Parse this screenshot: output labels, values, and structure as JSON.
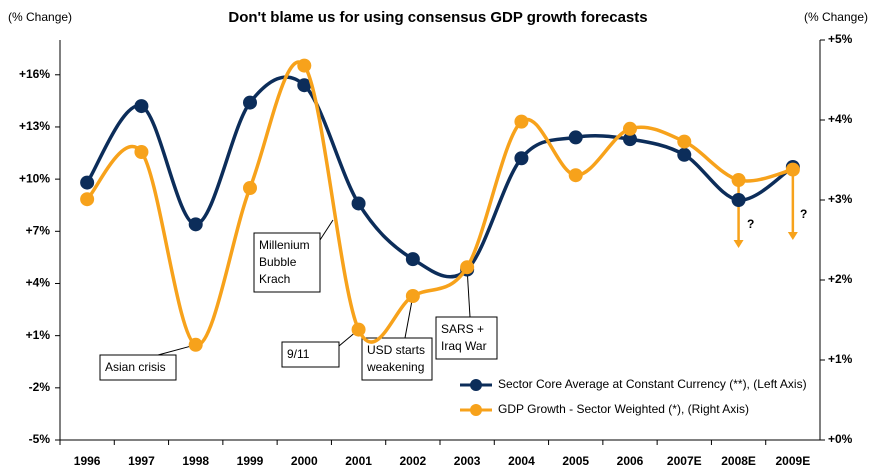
{
  "chart_data": {
    "type": "line",
    "title": "Don't blame us for using consensus GDP growth forecasts",
    "ylabel": "(% Change)",
    "y2label": "(% Change)",
    "categories": [
      "1996",
      "1997",
      "1998",
      "1999",
      "2000",
      "2001",
      "2002",
      "2003",
      "2004",
      "2005",
      "2006",
      "2007E",
      "2008E",
      "2009E"
    ],
    "series": [
      {
        "name": "Sector Core Average at Constant Currency (**), (Left Axis)",
        "color": "#0c2d5a",
        "axis": "y",
        "values": [
          9.8,
          14.2,
          7.4,
          14.4,
          15.4,
          8.6,
          5.4,
          4.8,
          11.2,
          12.4,
          12.3,
          11.4,
          8.8,
          10.7
        ]
      },
      {
        "name": "GDP Growth - Sector Weighted (*), (Right Axis)",
        "color": "#f7a21b",
        "axis": "y2",
        "values": [
          3.01,
          3.6,
          1.19,
          3.15,
          4.68,
          1.38,
          1.8,
          2.16,
          3.98,
          3.31,
          3.89,
          3.73,
          3.25,
          3.38
        ]
      }
    ],
    "ylim": [
      -5,
      18
    ],
    "yticks": [
      {
        "value": -5,
        "label": "-5%"
      },
      {
        "value": -2,
        "label": "-2%"
      },
      {
        "value": 1,
        "label": "+1%"
      },
      {
        "value": 4,
        "label": "+4%"
      },
      {
        "value": 7,
        "label": "+7%"
      },
      {
        "value": 10,
        "label": "+10%"
      },
      {
        "value": 13,
        "label": "+13%"
      },
      {
        "value": 16,
        "label": "+16%"
      }
    ],
    "y2lim": [
      0,
      5
    ],
    "y2ticks": [
      {
        "value": 0,
        "label": "+0%"
      },
      {
        "value": 1,
        "label": "+1%"
      },
      {
        "value": 2,
        "label": "+2%"
      },
      {
        "value": 3,
        "label": "+3%"
      },
      {
        "value": 4,
        "label": "+4%"
      },
      {
        "value": 5,
        "label": "+5%"
      }
    ],
    "annotations": [
      {
        "text": [
          "Asian crisis"
        ]
      },
      {
        "text": [
          "Millenium",
          "Bubble",
          "Krach"
        ]
      },
      {
        "text": [
          "9/11"
        ]
      },
      {
        "text": [
          "USD starts",
          "weakening"
        ]
      },
      {
        "text": [
          "SARS +",
          "Iraq War"
        ]
      },
      {
        "text": [
          "?"
        ]
      },
      {
        "text": [
          "?"
        ]
      }
    ]
  }
}
